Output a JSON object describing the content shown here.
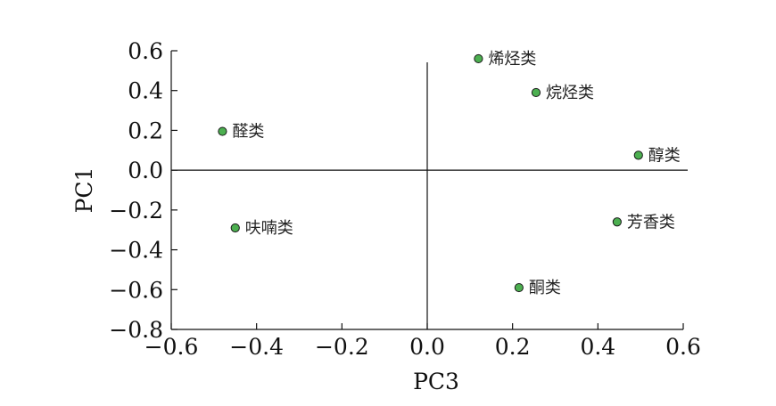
{
  "chart_data": {
    "type": "scatter",
    "title": "",
    "xlabel": "PC3",
    "ylabel": "PC1",
    "xlim": [
      -0.6,
      0.6
    ],
    "ylim": [
      -0.8,
      0.6
    ],
    "x_ticks": [
      "−0.6",
      "−0.4",
      "−0.2",
      "0.0",
      "0.2",
      "0.4",
      "0.6"
    ],
    "y_ticks": [
      "0.6",
      "0.4",
      "0.2",
      "0.0",
      "−0.2",
      "−0.4",
      "−0.6",
      "−0.8"
    ],
    "x_tick_values": [
      -0.6,
      -0.4,
      -0.2,
      0.0,
      0.2,
      0.4,
      0.6
    ],
    "y_tick_values": [
      0.6,
      0.4,
      0.2,
      0.0,
      -0.2,
      -0.4,
      -0.6,
      -0.8
    ],
    "reference_lines": {
      "x": 0.0,
      "y": 0.0
    },
    "grid": false,
    "marker_color": "#4caf50",
    "points": [
      {
        "label": "烯烃类",
        "x": 0.12,
        "y": 0.56
      },
      {
        "label": "烷烃类",
        "x": 0.255,
        "y": 0.39
      },
      {
        "label": "醛类",
        "x": -0.48,
        "y": 0.195
      },
      {
        "label": "醇类",
        "x": 0.495,
        "y": 0.075
      },
      {
        "label": "呋喃类",
        "x": -0.45,
        "y": -0.29
      },
      {
        "label": "芳香类",
        "x": 0.445,
        "y": -0.26
      },
      {
        "label": "酮类",
        "x": 0.215,
        "y": -0.59
      }
    ]
  }
}
